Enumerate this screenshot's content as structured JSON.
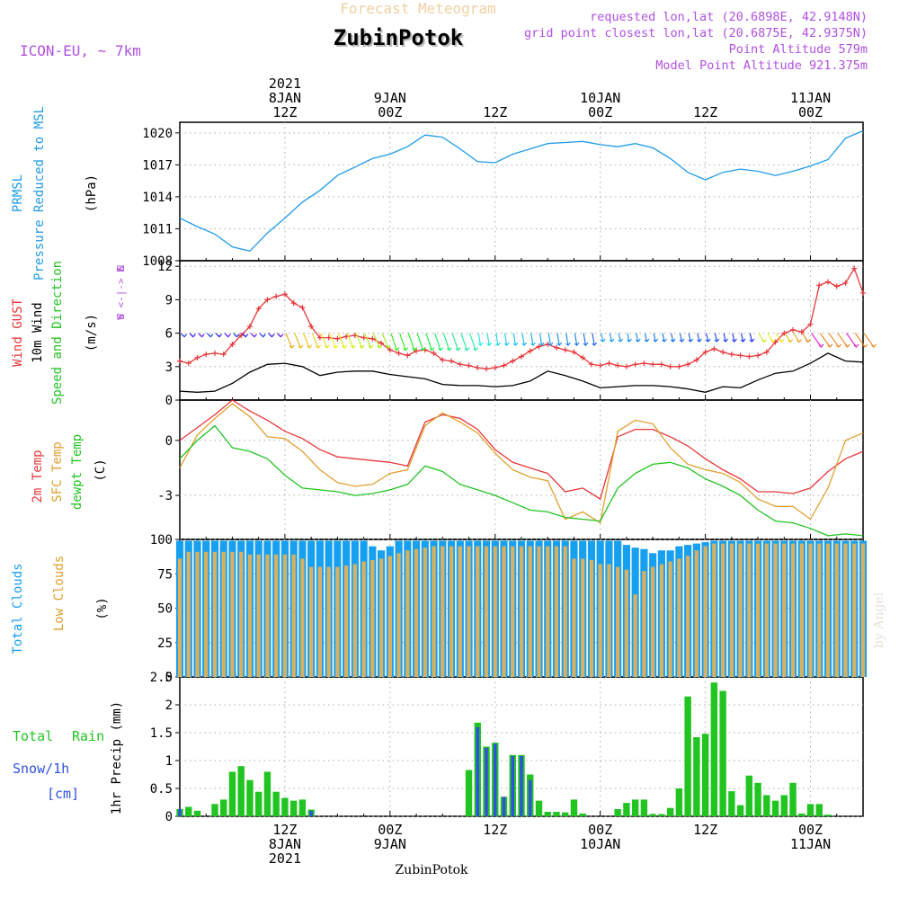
{
  "header": {
    "product_title": "Forecast Meteogram",
    "location": "ZubinPotok",
    "model": "ICON-EU, ~ 7km",
    "requested_point": "requested lon,lat (20.6898E, 42.9148N)",
    "closest_point": "grid point closest lon,lat (20.6875E, 42.9375N)",
    "point_altitude": "Point Altitude 579m",
    "model_altitude": "Model Point Altitude 921.375m",
    "footer_location": "ZubinPotok",
    "credit": "by Angel"
  },
  "time_axis": {
    "top_ticks": [
      {
        "t": 12,
        "lines": [
          "2021",
          "8JAN",
          "12Z"
        ]
      },
      {
        "t": 24,
        "lines": [
          "9JAN",
          "00Z"
        ]
      },
      {
        "t": 36,
        "lines": [
          "12Z"
        ]
      },
      {
        "t": 48,
        "lines": [
          "10JAN",
          "00Z"
        ]
      },
      {
        "t": 60,
        "lines": [
          "12Z"
        ]
      },
      {
        "t": 72,
        "lines": [
          "11JAN",
          "00Z"
        ]
      }
    ],
    "bottom_ticks": [
      {
        "t": 12,
        "lines": [
          "12Z",
          "8JAN",
          "2021"
        ]
      },
      {
        "t": 24,
        "lines": [
          "00Z",
          "9JAN"
        ]
      },
      {
        "t": 36,
        "lines": [
          "12Z"
        ]
      },
      {
        "t": 48,
        "lines": [
          "00Z",
          "10JAN"
        ]
      },
      {
        "t": 60,
        "lines": [
          "12Z"
        ]
      },
      {
        "t": 72,
        "lines": [
          "00Z",
          "11JAN"
        ]
      }
    ]
  },
  "colors": {
    "pressure": "#1e9be8",
    "gust": "#e8363a",
    "wind": "#000000",
    "green": "#22c422",
    "sfc": "#e0a030",
    "total_cloud": "#18a0f0",
    "low_cloud": "#d8b060",
    "snow": "#3050e0",
    "purple": "#b050e0"
  },
  "panels": {
    "pressure": {
      "labels": [
        "PRMSL",
        "Pressure Reduced to MSL",
        "(hPa)"
      ],
      "yticks": [
        "1008",
        "1011",
        "1014",
        "1017",
        "1020"
      ]
    },
    "wind": {
      "labels": [
        "Wind GUST",
        "10m Wind",
        "Speed and Direction",
        "(m/s)"
      ],
      "yticks": [
        "0",
        "3",
        "6",
        "9",
        "12"
      ],
      "compass": [
        "N",
        "W <-|-> E",
        "S"
      ]
    },
    "temp": {
      "labels": [
        "2m Temp",
        "SFC Temp",
        "dewpt Temp",
        "(C)"
      ],
      "yticks": [
        "-3",
        "0"
      ]
    },
    "clouds": {
      "labels": [
        "Total Clouds",
        "Low Clouds",
        "(%)"
      ],
      "yticks": [
        "0",
        "25",
        "50",
        "75",
        "100"
      ]
    },
    "precip": {
      "labels": [
        "Total",
        "Rain",
        "Snow/1h",
        "[cm]",
        "1hr Precip (mm)"
      ],
      "yticks": [
        "0",
        "0.5",
        "1",
        "1.5",
        "2",
        "2.5"
      ]
    }
  },
  "chart_data": [
    {
      "type": "line",
      "name": "PRMSL",
      "ylabel": "(hPa)",
      "ylim": [
        1008,
        1021
      ],
      "x_range": [
        0,
        78
      ],
      "x": [
        0,
        2,
        4,
        6,
        8,
        10,
        12,
        14,
        16,
        18,
        20,
        22,
        24,
        26,
        28,
        30,
        32,
        34,
        36,
        38,
        40,
        42,
        44,
        46,
        48,
        50,
        52,
        54,
        56,
        58,
        60,
        62,
        64,
        66,
        68,
        70,
        72,
        74,
        76,
        78
      ],
      "values": [
        1012,
        1011.2,
        1010.5,
        1009.3,
        1008.9,
        1010.6,
        1012,
        1013.5,
        1014.6,
        1016,
        1016.8,
        1017.6,
        1018,
        1018.7,
        1019.8,
        1019.6,
        1018.5,
        1017.3,
        1017.2,
        1018,
        1018.5,
        1019,
        1019.1,
        1019.2,
        1018.9,
        1018.7,
        1019,
        1018.6,
        1017.6,
        1016.3,
        1015.6,
        1016.3,
        1016.6,
        1016.4,
        1016,
        1016.4,
        1016.9,
        1017.5,
        1019.5,
        1020.2
      ],
      "grid": true
    },
    {
      "type": "line",
      "name": "Wind",
      "ylabel": "(m/s)",
      "ylim": [
        0,
        12.5
      ],
      "x_range": [
        0,
        78
      ],
      "series": [
        {
          "name": "Wind GUST",
          "x": [
            0,
            1,
            2,
            3,
            4,
            5,
            6,
            7,
            8,
            9,
            10,
            11,
            12,
            13,
            14,
            15,
            16,
            17,
            18,
            19,
            20,
            21,
            22,
            23,
            24,
            25,
            26,
            27,
            28,
            29,
            30,
            31,
            32,
            33,
            34,
            35,
            36,
            37,
            38,
            39,
            40,
            41,
            42,
            43,
            44,
            45,
            46,
            47,
            48,
            49,
            50,
            51,
            52,
            53,
            54,
            55,
            56,
            57,
            58,
            59,
            60,
            61,
            62,
            63,
            64,
            65,
            66,
            67,
            68,
            69,
            70,
            71,
            72,
            73,
            74,
            75,
            76,
            77,
            78
          ],
          "values": [
            3.5,
            3.3,
            3.8,
            4.1,
            4.2,
            4.1,
            5,
            5.8,
            6.6,
            8.2,
            9,
            9.3,
            9.5,
            8.7,
            8.3,
            6.6,
            5.6,
            5.6,
            5.5,
            5.7,
            5.8,
            5.6,
            5.5,
            5.1,
            4.5,
            4.2,
            4,
            4.4,
            4.5,
            4.2,
            3.6,
            3.5,
            3.2,
            3.1,
            2.9,
            2.8,
            2.9,
            3.1,
            3.5,
            3.9,
            4.4,
            4.8,
            5,
            4.7,
            4.5,
            4.3,
            3.8,
            3.2,
            3.1,
            3.3,
            3.1,
            3,
            3.2,
            3.3,
            3.2,
            3.2,
            3,
            3,
            3.2,
            3.6,
            4.3,
            4.6,
            4.3,
            4.1,
            4,
            3.9,
            4,
            4.3,
            5.2,
            6,
            6.3,
            6.1,
            6.8,
            10.3,
            10.6,
            10.2,
            10.5,
            11.8,
            9.6
          ]
        },
        {
          "name": "10m Wind",
          "x": [
            0,
            2,
            4,
            6,
            8,
            10,
            12,
            14,
            16,
            18,
            20,
            22,
            24,
            26,
            28,
            30,
            32,
            34,
            36,
            38,
            40,
            42,
            44,
            46,
            48,
            50,
            52,
            54,
            56,
            58,
            60,
            62,
            64,
            66,
            68,
            70,
            72,
            74,
            76,
            78
          ],
          "values": [
            0.8,
            0.7,
            0.8,
            1.5,
            2.5,
            3.2,
            3.3,
            3,
            2.2,
            2.5,
            2.6,
            2.6,
            2.3,
            2.1,
            1.9,
            1.4,
            1.3,
            1.3,
            1.2,
            1.3,
            1.7,
            2.6,
            2.2,
            1.7,
            1.1,
            1.2,
            1.3,
            1.3,
            1.2,
            1,
            0.7,
            1.2,
            1.1,
            1.8,
            2.4,
            2.6,
            3.3,
            4.2,
            3.5,
            3.4
          ]
        }
      ],
      "grid": true
    },
    {
      "type": "line",
      "name": "Temperatures",
      "ylabel": "(C)",
      "ylim": [
        -5.4,
        2.2
      ],
      "x_range": [
        0,
        78
      ],
      "x": [
        0,
        2,
        4,
        6,
        8,
        10,
        12,
        14,
        16,
        18,
        20,
        22,
        24,
        26,
        28,
        30,
        32,
        34,
        36,
        38,
        40,
        42,
        44,
        46,
        48,
        50,
        52,
        54,
        56,
        58,
        60,
        62,
        64,
        66,
        68,
        70,
        72,
        74,
        76,
        78
      ],
      "series": [
        {
          "name": "2m Temp",
          "values": [
            0,
            0.7,
            1.4,
            2.2,
            1.6,
            1.1,
            0.5,
            0.1,
            -0.5,
            -0.9,
            -1,
            -1.1,
            -1.2,
            -1.4,
            1,
            1.4,
            1.2,
            0.6,
            -0.5,
            -1.2,
            -1.5,
            -1.8,
            -2.8,
            -2.6,
            -3.2,
            0.2,
            0.6,
            0.6,
            0.2,
            -0.3,
            -1,
            -1.6,
            -2.1,
            -2.8,
            -2.8,
            -2.9,
            -2.6,
            -1.7,
            -1,
            -0.6
          ]
        },
        {
          "name": "SFC Temp",
          "values": [
            -1.5,
            0.3,
            1.2,
            2,
            1.3,
            0.2,
            0.1,
            -0.6,
            -1.6,
            -2.3,
            -2.5,
            -2.4,
            -1.8,
            -1.6,
            0.8,
            1.5,
            1,
            0.4,
            -0.7,
            -1.6,
            -2,
            -2.2,
            -4.3,
            -3.9,
            -4.5,
            0.5,
            1.1,
            0.9,
            -0.4,
            -1.3,
            -1.6,
            -1.8,
            -2.3,
            -3.2,
            -3.6,
            -3.6,
            -4.3,
            -2.6,
            0,
            0.4
          ]
        },
        {
          "name": "dewpt Temp",
          "values": [
            -1,
            0,
            0.8,
            -0.4,
            -0.6,
            -1,
            -1.9,
            -2.6,
            -2.7,
            -2.8,
            -3,
            -2.9,
            -2.7,
            -2.4,
            -1.4,
            -1.7,
            -2.4,
            -2.7,
            -3,
            -3.4,
            -3.8,
            -3.9,
            -4.2,
            -4.3,
            -4.4,
            -2.6,
            -1.8,
            -1.3,
            -1.2,
            -1.5,
            -2.1,
            -2.5,
            -3,
            -3.8,
            -4.4,
            -4.5,
            -4.8,
            -5.2,
            -5.1,
            -5.2
          ]
        }
      ],
      "grid": true
    },
    {
      "type": "bar",
      "name": "Clouds",
      "ylabel": "(%)",
      "ylim": [
        0,
        100
      ],
      "x_range": [
        0,
        78
      ],
      "x": [
        0,
        1,
        2,
        3,
        4,
        5,
        6,
        7,
        8,
        9,
        10,
        11,
        12,
        13,
        14,
        15,
        16,
        17,
        18,
        19,
        20,
        21,
        22,
        23,
        24,
        25,
        26,
        27,
        28,
        29,
        30,
        31,
        32,
        33,
        34,
        35,
        36,
        37,
        38,
        39,
        40,
        41,
        42,
        43,
        44,
        45,
        46,
        47,
        48,
        49,
        50,
        51,
        52,
        53,
        54,
        55,
        56,
        57,
        58,
        59,
        60,
        61,
        62,
        63,
        64,
        65,
        66,
        67,
        68,
        69,
        70,
        71,
        72,
        73,
        74,
        75,
        76,
        77,
        78
      ],
      "series": [
        {
          "name": "Total Clouds",
          "values": [
            99,
            99,
            99,
            99,
            99,
            99,
            99,
            99,
            99,
            99,
            99,
            99,
            99,
            99,
            99,
            99,
            99,
            99,
            99,
            99,
            99,
            99,
            95,
            92,
            95,
            99,
            99,
            99,
            99,
            99,
            99,
            99,
            99,
            99,
            99,
            99,
            99,
            99,
            99,
            99,
            99,
            99,
            99,
            99,
            99,
            99,
            99,
            99,
            99,
            99,
            99,
            96,
            94,
            93,
            90,
            92,
            92,
            95,
            96,
            97,
            98,
            99,
            99,
            99,
            99,
            99,
            99,
            99,
            99,
            99,
            99,
            99,
            99,
            99,
            99,
            99,
            99,
            99,
            99
          ]
        },
        {
          "name": "Low Clouds",
          "values": [
            86,
            91,
            91,
            91,
            91,
            91,
            91,
            91,
            89,
            89,
            89,
            89,
            89,
            89,
            86,
            80,
            80,
            80,
            80,
            81,
            82,
            84,
            85,
            86,
            88,
            90,
            92,
            93,
            94,
            95,
            95,
            95,
            95,
            95,
            95,
            95,
            95,
            95,
            95,
            95,
            95,
            95,
            95,
            95,
            95,
            86,
            86,
            85,
            82,
            82,
            80,
            78,
            60,
            77,
            80,
            82,
            84,
            86,
            88,
            92,
            95,
            97,
            97,
            97,
            97,
            97,
            97,
            97,
            97,
            97,
            97,
            97,
            97,
            97,
            97,
            97,
            97,
            97,
            97
          ]
        }
      ],
      "grid": true
    },
    {
      "type": "bar",
      "name": "1hr Precip",
      "ylabel": "1hr Precip (mm)",
      "ylim": [
        0,
        2.5
      ],
      "x_range": [
        0,
        78
      ],
      "x": [
        0,
        1,
        2,
        3,
        4,
        5,
        6,
        7,
        8,
        9,
        10,
        11,
        12,
        13,
        14,
        15,
        16,
        17,
        18,
        19,
        20,
        21,
        22,
        23,
        24,
        25,
        26,
        27,
        28,
        29,
        30,
        31,
        32,
        33,
        34,
        35,
        36,
        37,
        38,
        39,
        40,
        41,
        42,
        43,
        44,
        45,
        46,
        47,
        48,
        49,
        50,
        51,
        52,
        53,
        54,
        55,
        56,
        57,
        58,
        59,
        60,
        61,
        62,
        63,
        64,
        65,
        66,
        67,
        68,
        69,
        70,
        71,
        72,
        73,
        74,
        75,
        76,
        77,
        78
      ],
      "series": [
        {
          "name": "Total Rain",
          "values": [
            0.13,
            0.17,
            0.1,
            0,
            0.22,
            0.3,
            0.8,
            0.9,
            0.65,
            0.44,
            0.8,
            0.44,
            0.33,
            0.28,
            0.3,
            0.12,
            0,
            0,
            0,
            0,
            0,
            0,
            0,
            0,
            0,
            0,
            0,
            0,
            0,
            0,
            0,
            0,
            0,
            0.83,
            1.68,
            1.25,
            1.32,
            0.35,
            1.1,
            1.1,
            0.75,
            0.28,
            0.08,
            0.08,
            0.07,
            0.3,
            0.05,
            0,
            0,
            0,
            0.13,
            0.24,
            0.3,
            0.3,
            0.04,
            0.04,
            0.15,
            0.5,
            2.15,
            1.42,
            1.48,
            2.4,
            2.25,
            0.45,
            0.2,
            0.73,
            0.6,
            0.38,
            0.28,
            0.38,
            0.6,
            0.05,
            0.22,
            0.22,
            0.03,
            0,
            0,
            0,
            0
          ]
        },
        {
          "name": "Snow/1h",
          "values": [
            0.13,
            0,
            0,
            0,
            0,
            0,
            0,
            0,
            0,
            0,
            0,
            0,
            0,
            0,
            0,
            0.1,
            0,
            0,
            0,
            0,
            0,
            0,
            0,
            0,
            0,
            0,
            0,
            0,
            0,
            0,
            0,
            0,
            0,
            0,
            1.6,
            1.23,
            1.3,
            0.35,
            1.08,
            1.08,
            0.65,
            0,
            0,
            0,
            0,
            0,
            0,
            0,
            0,
            0,
            0,
            0,
            0,
            0,
            0,
            0,
            0,
            0,
            0,
            0,
            0,
            0,
            0,
            0,
            0,
            0,
            0,
            0,
            0,
            0,
            0,
            0,
            0,
            0,
            0,
            0,
            0,
            0,
            0
          ]
        }
      ],
      "grid": true
    }
  ]
}
